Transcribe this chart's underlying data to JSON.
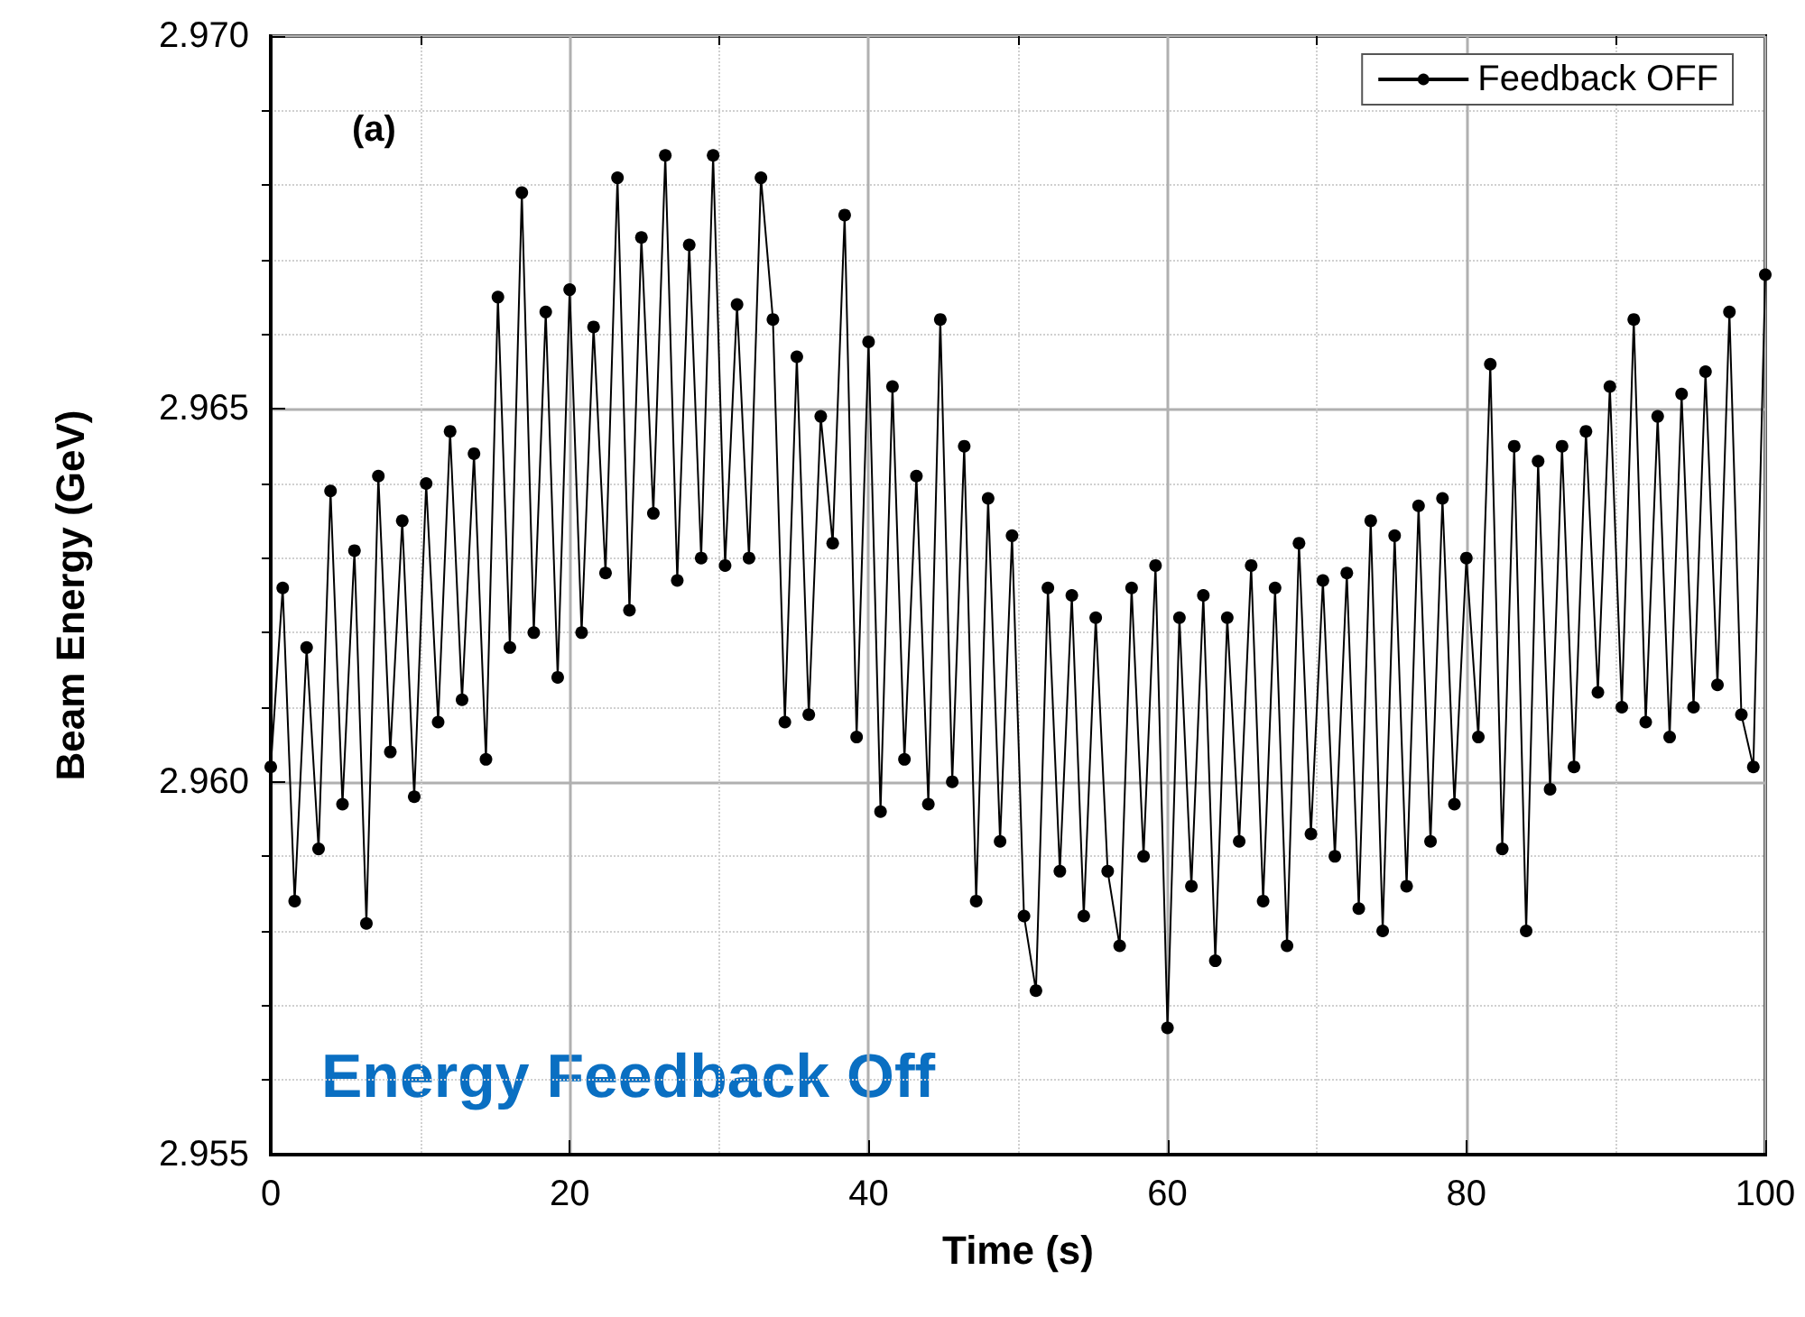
{
  "chart_data": {
    "type": "line",
    "xlabel": "Time (s)",
    "ylabel": "Beam Energy (GeV)",
    "annotations": [
      "(a)",
      "Energy Feedback Off"
    ],
    "x": [
      0,
      0.8,
      1.6,
      2.4,
      3.2,
      4,
      4.8,
      5.6,
      6.4,
      7.2,
      8,
      8.8,
      9.6,
      10.4,
      11.2,
      12,
      12.8,
      13.6,
      14.4,
      15.2,
      16,
      16.8,
      17.6,
      18.4,
      19.2,
      20,
      20.8,
      21.6,
      22.4,
      23.2,
      24,
      24.8,
      25.6,
      26.4,
      27.2,
      28,
      28.8,
      29.6,
      30.4,
      31.2,
      32,
      32.8,
      33.6,
      34.4,
      35.2,
      36,
      36.8,
      37.6,
      38.4,
      39.2,
      40,
      40.8,
      41.6,
      42.4,
      43.2,
      44,
      44.8,
      45.6,
      46.4,
      47.2,
      48,
      48.8,
      49.6,
      50.4,
      51.2,
      52,
      52.8,
      53.6,
      54.4,
      55.2,
      56,
      56.8,
      57.6,
      58.4,
      59.2,
      60,
      60.8,
      61.6,
      62.4,
      63.2,
      64,
      64.8,
      65.6,
      66.4,
      67.2,
      68,
      68.8,
      69.6,
      70.4,
      71.2,
      72,
      72.8,
      73.6,
      74.4,
      75.2,
      76,
      76.8,
      77.6,
      78.4,
      79.2,
      80,
      80.8,
      81.6,
      82.4,
      83.2,
      84,
      84.8,
      85.6,
      86.4,
      87.2,
      88,
      88.8,
      89.6,
      90.4,
      91.2,
      92,
      92.8,
      93.6,
      94.4,
      95.2,
      96,
      96.8,
      97.6,
      98.4,
      99.2,
      100
    ],
    "series": [
      {
        "name": "Feedback OFF",
        "color": "#000000",
        "values": [
          2.9602,
          2.9626,
          2.9584,
          2.9618,
          2.9591,
          2.9639,
          2.9597,
          2.9631,
          2.9581,
          2.9641,
          2.9604,
          2.9635,
          2.9598,
          2.964,
          2.9608,
          2.9647,
          2.9611,
          2.9644,
          2.9603,
          2.9665,
          2.9618,
          2.9679,
          2.962,
          2.9663,
          2.9614,
          2.9666,
          2.962,
          2.9661,
          2.9628,
          2.9681,
          2.9623,
          2.9673,
          2.9636,
          2.9684,
          2.9627,
          2.9672,
          2.963,
          2.9684,
          2.9629,
          2.9664,
          2.963,
          2.9681,
          2.9662,
          2.9608,
          2.9657,
          2.9609,
          2.9649,
          2.9632,
          2.9676,
          2.9606,
          2.9659,
          2.9596,
          2.9653,
          2.9603,
          2.9641,
          2.9597,
          2.9662,
          2.96,
          2.9645,
          2.9584,
          2.9638,
          2.9592,
          2.9633,
          2.9582,
          2.9572,
          2.9626,
          2.9588,
          2.9625,
          2.9582,
          2.9622,
          2.9588,
          2.9578,
          2.9626,
          2.959,
          2.9629,
          2.9567,
          2.9622,
          2.9586,
          2.9625,
          2.9576,
          2.9622,
          2.9592,
          2.9629,
          2.9584,
          2.9626,
          2.9578,
          2.9632,
          2.9593,
          2.9627,
          2.959,
          2.9628,
          2.9583,
          2.9635,
          2.958,
          2.9633,
          2.9586,
          2.9637,
          2.9592,
          2.9638,
          2.9597,
          2.963,
          2.9606,
          2.9656,
          2.9591,
          2.9645,
          2.958,
          2.9643,
          2.9599,
          2.9645,
          2.9602,
          2.9647,
          2.9612,
          2.9653,
          2.961,
          2.9662,
          2.9608,
          2.9649,
          2.9606,
          2.9652,
          2.961,
          2.9655,
          2.9613,
          2.9663,
          2.9609,
          2.9602,
          2.9668
        ]
      }
    ],
    "xlim": [
      0,
      100
    ],
    "xticks": [
      0,
      {
        "value": 10,
        "label": null
      },
      20,
      {
        "value": 30,
        "label": null
      },
      40,
      {
        "value": 50,
        "label": null
      },
      60,
      {
        "value": 70,
        "label": null
      },
      80,
      {
        "value": 90,
        "label": null
      },
      100
    ],
    "ylim": [
      2.955,
      2.97
    ],
    "yticks": [
      {
        "value": 2.955,
        "label": "2.955"
      },
      {
        "value": 2.956,
        "label": null
      },
      {
        "value": 2.957,
        "label": null
      },
      {
        "value": 2.958,
        "label": null
      },
      {
        "value": 2.959,
        "label": null
      },
      {
        "value": 2.96,
        "label": "2.960"
      },
      {
        "value": 2.961,
        "label": null
      },
      {
        "value": 2.962,
        "label": null
      },
      {
        "value": 2.963,
        "label": null
      },
      {
        "value": 2.964,
        "label": null
      },
      {
        "value": 2.965,
        "label": "2.965"
      },
      {
        "value": 2.966,
        "label": null
      },
      {
        "value": 2.967,
        "label": null
      },
      {
        "value": 2.968,
        "label": null
      },
      {
        "value": 2.969,
        "label": null
      },
      {
        "value": 2.97,
        "label": "2.970"
      }
    ],
    "grid": true,
    "legend": "top right",
    "marker": "circle",
    "line_style": "solid"
  }
}
